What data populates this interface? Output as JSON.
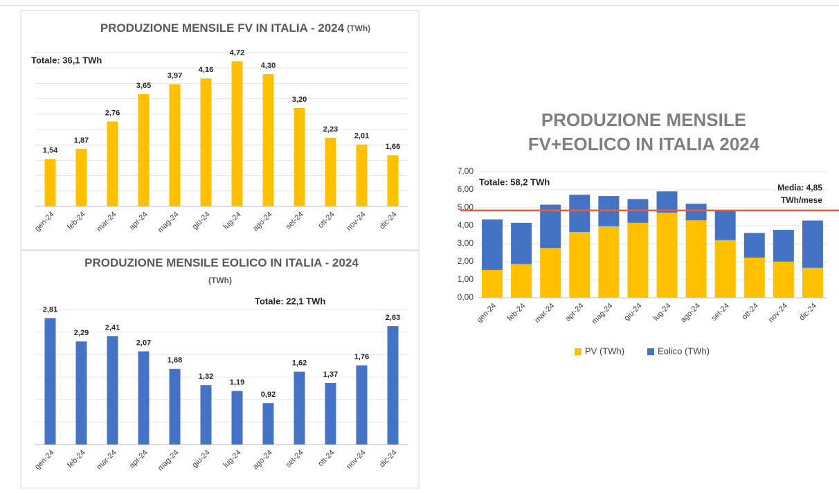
{
  "chart_data": [
    {
      "type": "bar",
      "title": "PRODUZIONE MENSILE FV IN ITALIA - 2024",
      "subtitle": "(TWh)",
      "annotation": "Totale: 36,1 TWh",
      "categories": [
        "gen-24",
        "feb-24",
        "mar-24",
        "apr-24",
        "mag-24",
        "giu-24",
        "lug-24",
        "ago-24",
        "set-24",
        "ott-24",
        "nov-24",
        "dic-24"
      ],
      "values": [
        1.54,
        1.87,
        2.76,
        3.65,
        3.97,
        4.16,
        4.72,
        4.3,
        3.2,
        2.23,
        2.01,
        1.66
      ],
      "value_labels": [
        "1,54",
        "1,87",
        "2,76",
        "3,65",
        "3,97",
        "4,16",
        "4,72",
        "4,30",
        "3,20",
        "2,23",
        "2,01",
        "1,66"
      ],
      "color": "#ffc000",
      "ylim": [
        0,
        5
      ],
      "yticks": [
        0,
        0.5,
        1,
        1.5,
        2,
        2.5,
        3,
        3.5,
        4,
        4.5,
        5
      ],
      "grid": true
    },
    {
      "type": "bar",
      "title": "PRODUZIONE MENSILE EOLICO IN ITALIA - 2024",
      "subtitle": "(TWh)",
      "annotation": "Totale: 22,1 TWh",
      "categories": [
        "gen-24",
        "feb-24",
        "mar-24",
        "apr-24",
        "mag-24",
        "giu-24",
        "lug-24",
        "ago-24",
        "set-24",
        "ott-24",
        "nov-24",
        "dic-24"
      ],
      "values": [
        2.81,
        2.29,
        2.41,
        2.07,
        1.68,
        1.32,
        1.19,
        0.92,
        1.62,
        1.37,
        1.76,
        2.63
      ],
      "value_labels": [
        "2,81",
        "2,29",
        "2,41",
        "2,07",
        "1,68",
        "1,32",
        "1,19",
        "0,92",
        "1,62",
        "1,37",
        "1,76",
        "2,63"
      ],
      "color": "#4472c4",
      "ylim": [
        0,
        3
      ],
      "yticks": [
        0,
        0.5,
        1,
        1.5,
        2,
        2.5,
        3
      ],
      "grid": true
    },
    {
      "type": "stacked_bar",
      "title": [
        "PRODUZIONE MENSILE",
        "FV+EOLICO IN ITALIA 2024"
      ],
      "annotation": "Totale: 58,2 TWh",
      "categories": [
        "gen-24",
        "feb-24",
        "mar-24",
        "apr-24",
        "mag-24",
        "giu-24",
        "lug-24",
        "ago-24",
        "set-24",
        "ott-24",
        "nov-24",
        "dic-24"
      ],
      "series": [
        {
          "name": "PV (TWh)",
          "color": "#ffc000",
          "values": [
            1.54,
            1.87,
            2.76,
            3.65,
            3.97,
            4.16,
            4.72,
            4.3,
            3.2,
            2.23,
            2.01,
            1.66
          ]
        },
        {
          "name": "Eolico (TWh)",
          "color": "#4472c4",
          "values": [
            2.81,
            2.29,
            2.41,
            2.07,
            1.68,
            1.32,
            1.19,
            0.92,
            1.62,
            1.37,
            1.76,
            2.63
          ]
        }
      ],
      "ylim": [
        0,
        7
      ],
      "yticks": [
        {
          "value": 0,
          "label": "0,00"
        },
        {
          "value": 1,
          "label": "1,00"
        },
        {
          "value": 2,
          "label": "2,00"
        },
        {
          "value": 3,
          "label": "3,00"
        },
        {
          "value": 4,
          "label": "4,00"
        },
        {
          "value": 5,
          "label": "5,00"
        },
        {
          "value": 6,
          "label": "6,00"
        },
        {
          "value": 7,
          "label": "7,00"
        }
      ],
      "grid": true,
      "legend": "bottom",
      "hline": {
        "value": 4.85,
        "label": [
          "Media: 4,85",
          "TWh/mese"
        ],
        "color": "#e8603c"
      }
    }
  ]
}
